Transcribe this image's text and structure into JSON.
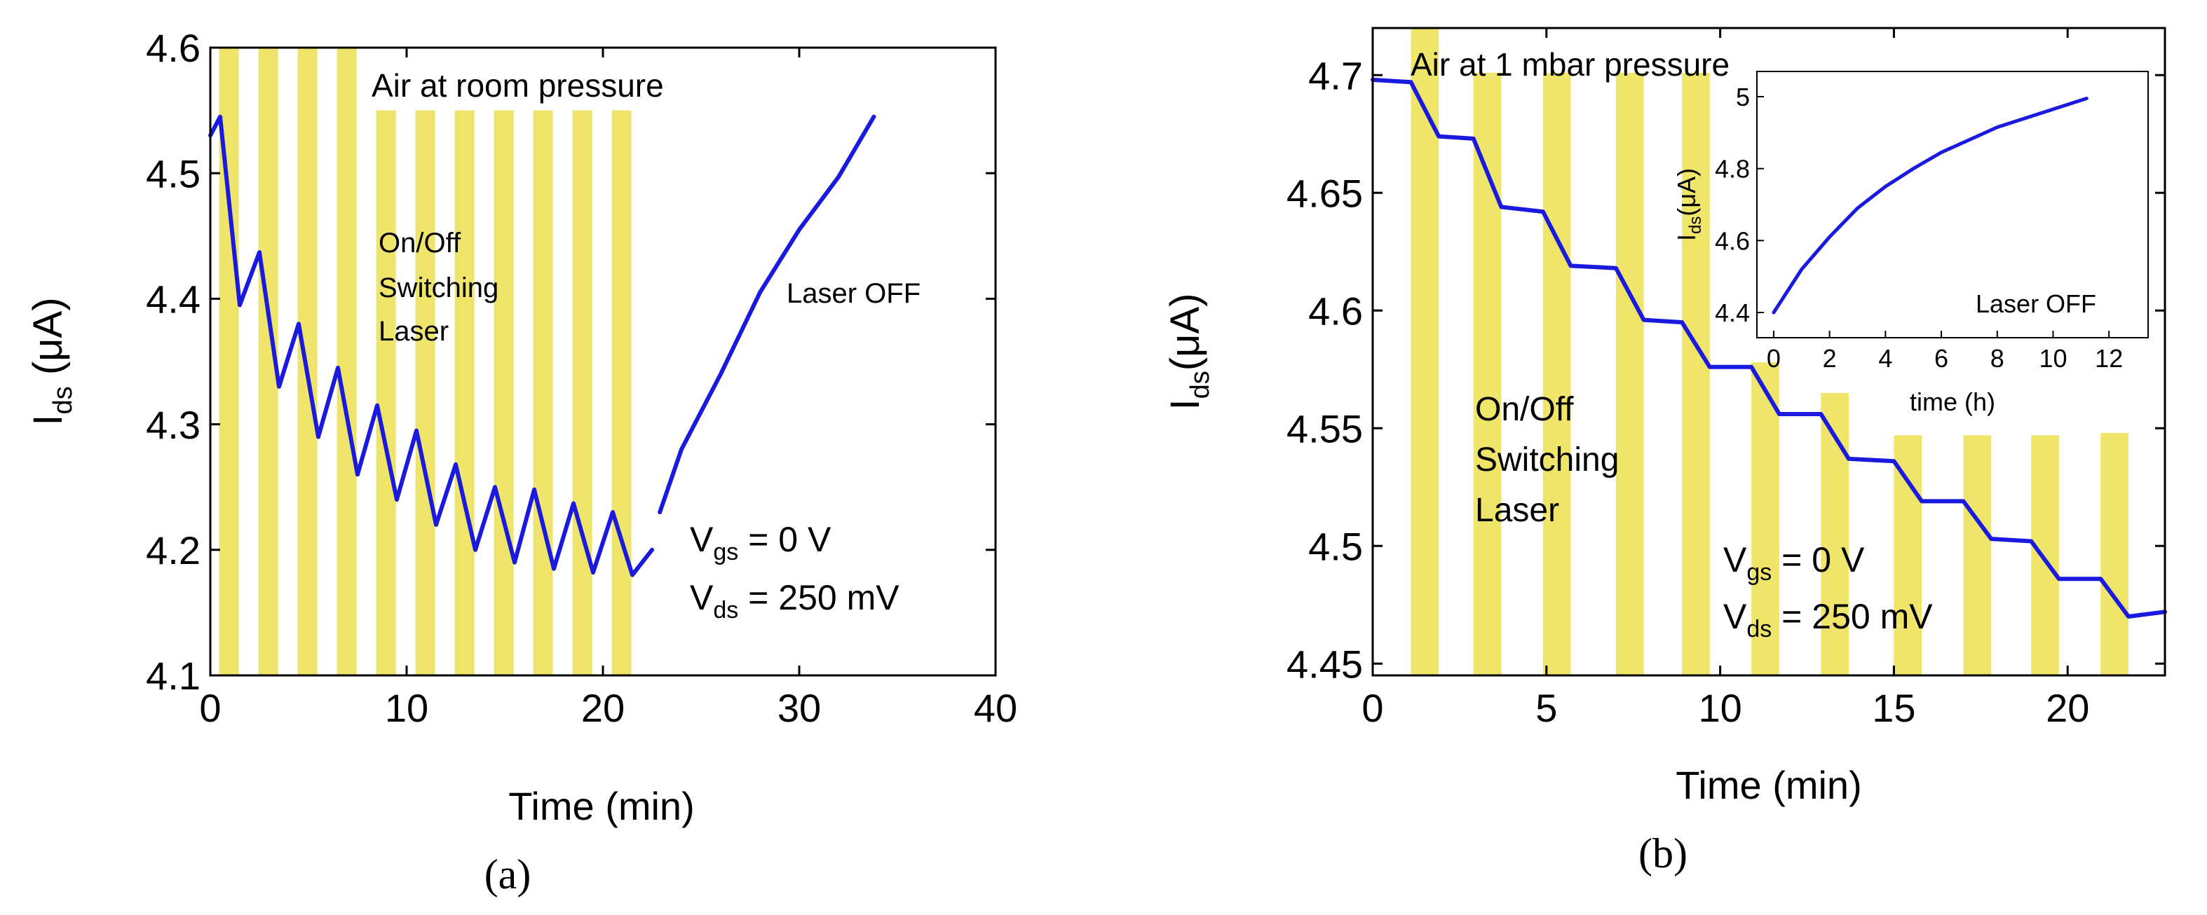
{
  "chart_data": [
    {
      "panel": "a",
      "type": "line",
      "caption": "(a)",
      "ylabel_main": "I",
      "ylabel_sub": "ds",
      "ylabel_unit": " (μA)",
      "xlabel": "Time (min)",
      "xlim": [
        0,
        40
      ],
      "ylim": [
        4.1,
        4.6
      ],
      "xticks": [
        0,
        10,
        20,
        30,
        40
      ],
      "xtick_labels": [
        "0",
        "10",
        "20",
        "30",
        "40"
      ],
      "yticks": [
        4.1,
        4.2,
        4.3,
        4.4,
        4.5,
        4.6
      ],
      "ytick_labels": [
        "4.1",
        "4.2",
        "4.3",
        "4.4",
        "4.5",
        "4.6"
      ],
      "laser_on_intervals": [
        [
          0.45,
          1.45
        ],
        [
          2.45,
          3.45
        ],
        [
          4.45,
          5.45
        ],
        [
          6.45,
          7.45
        ],
        [
          8.45,
          9.45
        ],
        [
          10.45,
          11.45
        ],
        [
          12.45,
          13.45
        ],
        [
          14.45,
          15.45
        ],
        [
          16.45,
          17.45
        ],
        [
          18.45,
          19.45
        ],
        [
          20.45,
          21.45
        ]
      ],
      "laser_on_top": [
        4.6,
        4.6,
        4.6,
        4.6,
        4.55,
        4.55,
        4.55,
        4.55,
        4.55,
        4.55,
        4.55
      ],
      "series": [
        {
          "name": "Ids",
          "color": "#1a1adf",
          "x": [
            0,
            0.5,
            1.5,
            2.5,
            3.5,
            4.5,
            5.5,
            6.5,
            7.5,
            8.5,
            9.5,
            10.5,
            11.5,
            12.5,
            13.5,
            14.5,
            15.5,
            16.5,
            17.5,
            18.5,
            19.5,
            20.5,
            21.5,
            22.5
          ],
          "y": [
            4.53,
            4.545,
            4.395,
            4.437,
            4.33,
            4.38,
            4.29,
            4.345,
            4.26,
            4.315,
            4.24,
            4.295,
            4.22,
            4.268,
            4.2,
            4.25,
            4.19,
            4.248,
            4.185,
            4.237,
            4.182,
            4.23,
            4.18,
            4.2
          ]
        },
        {
          "name": "Ids laser off",
          "color": "#1a1adf",
          "x": [
            22.9,
            24,
            26,
            28,
            30,
            32,
            33.8
          ],
          "y": [
            4.23,
            4.28,
            4.34,
            4.405,
            4.455,
            4.497,
            4.545
          ]
        }
      ],
      "annotations": {
        "title_text": "Air at room pressure",
        "switch_line1": "On/Off",
        "switch_line2": "Switching",
        "switch_line3": "Laser",
        "laser_off": "Laser OFF",
        "vgs_main": "V",
        "vgs_sub": "gs",
        "vgs_val": " = 0 V",
        "vds_main": "V",
        "vds_sub": "ds",
        "vds_val": " = 250 mV"
      }
    },
    {
      "panel": "b",
      "type": "line",
      "caption": "(b)",
      "ylabel_main": "I",
      "ylabel_sub": "ds",
      "ylabel_unit": "(μA)",
      "xlabel": "Time (min)",
      "xlim": [
        0,
        22.8
      ],
      "ylim": [
        4.445,
        4.72
      ],
      "xticks": [
        0,
        5,
        10,
        15,
        20
      ],
      "xtick_labels": [
        "0",
        "5",
        "10",
        "15",
        "20"
      ],
      "yticks": [
        4.45,
        4.5,
        4.55,
        4.6,
        4.65,
        4.7
      ],
      "ytick_labels": [
        "4.45",
        "4.5",
        "4.55",
        "4.6",
        "4.65",
        "4.7"
      ],
      "laser_on_intervals": [
        [
          1.1,
          1.9
        ],
        [
          2.9,
          3.7
        ],
        [
          4.9,
          5.7
        ],
        [
          7.0,
          7.8
        ],
        [
          8.9,
          9.7
        ],
        [
          10.9,
          11.7
        ],
        [
          12.9,
          13.7
        ],
        [
          15.0,
          15.8
        ],
        [
          17.0,
          17.8
        ],
        [
          18.95,
          19.75
        ],
        [
          20.95,
          21.75
        ]
      ],
      "laser_on_top": [
        4.72,
        4.701,
        4.701,
        4.701,
        4.701,
        4.578,
        4.565,
        4.547,
        4.547,
        4.547,
        4.548
      ],
      "series": [
        {
          "name": "Ids",
          "color": "#1a1adf",
          "x": [
            0,
            1.1,
            1.9,
            2.9,
            3.7,
            4.9,
            5.7,
            7.0,
            7.8,
            8.9,
            9.7,
            10.9,
            11.7,
            12.9,
            13.7,
            15.0,
            15.8,
            17.0,
            17.8,
            18.95,
            19.75,
            20.95,
            21.75,
            22.8
          ],
          "y": [
            4.698,
            4.697,
            4.674,
            4.673,
            4.644,
            4.642,
            4.619,
            4.618,
            4.596,
            4.595,
            4.576,
            4.576,
            4.556,
            4.556,
            4.537,
            4.536,
            4.519,
            4.519,
            4.503,
            4.502,
            4.486,
            4.486,
            4.47,
            4.472
          ]
        }
      ],
      "inset": {
        "type": "line",
        "xlabel": "time (h)",
        "ylabel_main": "I",
        "ylabel_sub": "ds",
        "ylabel_unit": "(μA)",
        "xlim": [
          -0.6,
          13.4
        ],
        "ylim": [
          4.33,
          5.07
        ],
        "xticks": [
          0,
          2,
          4,
          6,
          8,
          10,
          12
        ],
        "xtick_labels": [
          "0",
          "2",
          "4",
          "6",
          "8",
          "10",
          "12"
        ],
        "yticks": [
          4.4,
          4.6,
          4.8,
          5.0
        ],
        "ytick_labels": [
          "4.4",
          "4.6",
          "4.8",
          "5"
        ],
        "text": "Laser OFF",
        "x": [
          0,
          1,
          2,
          3,
          4,
          5,
          6,
          7,
          8,
          9,
          10,
          11.2
        ],
        "y": [
          4.4,
          4.52,
          4.61,
          4.69,
          4.75,
          4.8,
          4.845,
          4.88,
          4.915,
          4.94,
          4.965,
          4.995
        ]
      },
      "annotations": {
        "title_text": "Air at 1 mbar pressure",
        "switch_line1": "On/Off",
        "switch_line2": "Switching",
        "switch_line3": "Laser",
        "vgs_main": "V",
        "vgs_sub": "gs",
        "vgs_val": " = 0 V",
        "vds_main": "V",
        "vds_sub": "ds",
        "vds_val": " = 250 mV"
      }
    }
  ],
  "colors": {
    "laser_band": "#efe56a",
    "curve": "#1a1adf",
    "axis": "#000000"
  }
}
